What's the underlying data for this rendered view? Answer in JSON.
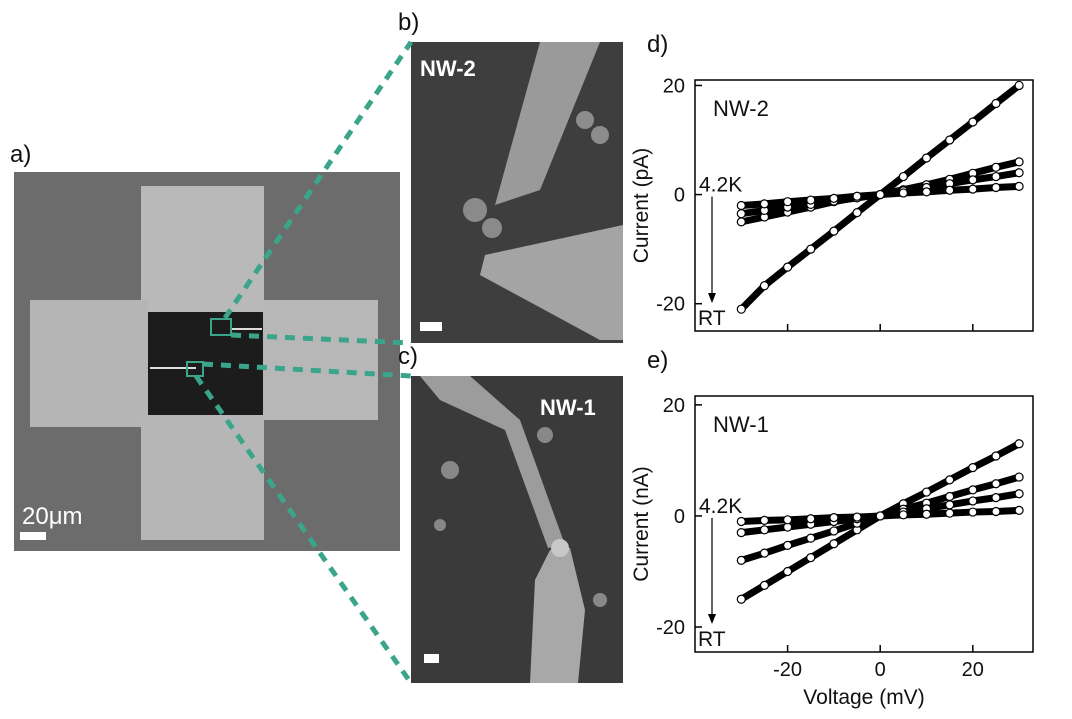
{
  "figure": {
    "panel_labels": [
      "a)",
      "b)",
      "c)"
    ],
    "scale_bar": "20μm",
    "nw2_label": "NW-2",
    "nw1_label": "NW-1"
  },
  "chart_data": [
    {
      "type": "scatter",
      "panel_label": "d)",
      "annotation": "NW-2",
      "ylabel": "Current (pA)",
      "arrow_start": "4.2K",
      "arrow_end": "RT",
      "x": [
        -30,
        -25,
        -20,
        -15,
        -10,
        -5,
        0,
        5,
        10,
        15,
        20,
        25,
        30
      ],
      "series": [
        {
          "color": "#000000",
          "values": [
            -21,
            -16.7,
            -13.3,
            -10,
            -6.7,
            -3.3,
            0,
            3.3,
            6.7,
            10,
            13.3,
            16.7,
            20
          ]
        },
        {
          "color": "#000000",
          "values": [
            -5,
            -4.1,
            -3.2,
            -2.3,
            -1.3,
            -0.5,
            0,
            0.9,
            1.8,
            2.8,
            3.9,
            5,
            6
          ]
        },
        {
          "color": "#000000",
          "values": [
            -3.5,
            -2.9,
            -2.3,
            -1.8,
            -1.2,
            -0.6,
            0,
            0.7,
            1.3,
            2,
            2.7,
            3.3,
            4
          ]
        },
        {
          "color": "#000000",
          "values": [
            -2,
            -1.7,
            -1.3,
            -1,
            -0.7,
            -0.3,
            0,
            0.3,
            0.5,
            0.8,
            1,
            1.3,
            1.5
          ]
        }
      ],
      "xlim": [
        -40,
        33
      ],
      "ylim": [
        -25,
        21
      ],
      "xticks": [
        -20,
        0,
        20
      ],
      "yticks": [
        -20,
        0,
        20
      ],
      "show_xtick_labels": false
    },
    {
      "type": "scatter",
      "panel_label": "e)",
      "annotation": "NW-1",
      "ylabel": "Current (nA)",
      "xlabel": "Voltage (mV)",
      "arrow_start": "4.2K",
      "arrow_end": "RT",
      "x": [
        -30,
        -25,
        -20,
        -15,
        -10,
        -5,
        0,
        5,
        10,
        15,
        20,
        25,
        30
      ],
      "series": [
        {
          "color": "#000000",
          "values": [
            -15,
            -12.5,
            -10,
            -7.5,
            -5,
            -2.5,
            0,
            2.2,
            4.3,
            6.5,
            8.7,
            10.8,
            13
          ]
        },
        {
          "color": "#000000",
          "values": [
            -8,
            -6.7,
            -5.3,
            -4,
            -2.7,
            -1.3,
            0,
            1.2,
            2.3,
            3.5,
            4.7,
            5.8,
            7
          ]
        },
        {
          "color": "#000000",
          "values": [
            -3,
            -2.5,
            -2,
            -1.5,
            -1,
            -0.5,
            0,
            0.7,
            1.3,
            2,
            2.7,
            3.3,
            4
          ]
        },
        {
          "color": "#000000",
          "values": [
            -1,
            -0.8,
            -0.7,
            -0.5,
            -0.3,
            -0.2,
            0,
            0.2,
            0.3,
            0.5,
            0.7,
            0.8,
            1
          ]
        }
      ],
      "xlim": [
        -40,
        33
      ],
      "ylim": [
        -24.5,
        21.6
      ],
      "xticks": [
        -20,
        0,
        20
      ],
      "yticks": [
        -20,
        0,
        20
      ],
      "show_xtick_labels": true
    }
  ]
}
